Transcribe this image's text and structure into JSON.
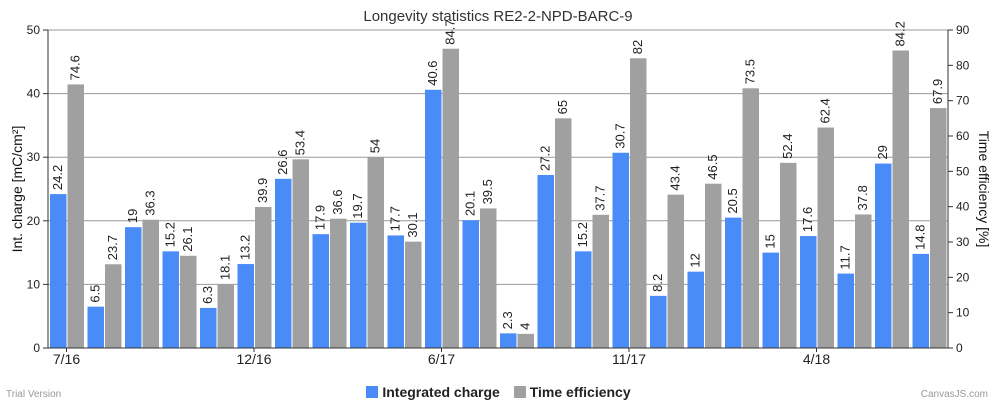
{
  "chart_data": {
    "type": "bar",
    "title": "Longevity statistics RE2-2-NPD-BARC-9",
    "y_left_label": "Int. charge [mC/cm²]",
    "y_right_label": "Time efficiency [%]",
    "y_left_range": [
      0,
      50
    ],
    "y_left_ticks": [
      "0",
      "10",
      "20",
      "30",
      "40",
      "50"
    ],
    "y_right_range": [
      0,
      90
    ],
    "y_right_ticks": [
      "0",
      "10",
      "20",
      "30",
      "40",
      "50",
      "60",
      "70",
      "80",
      "90"
    ],
    "x_tick_labels": [
      {
        "index": 0,
        "label": "7/16"
      },
      {
        "index": 5,
        "label": "12/16"
      },
      {
        "index": 10,
        "label": "6/17"
      },
      {
        "index": 15,
        "label": "11/17"
      },
      {
        "index": 20,
        "label": "4/18"
      }
    ],
    "grid": true,
    "legend_position": "bottom-center",
    "series": [
      {
        "name": "Integrated charge",
        "axis": "left",
        "color": "#4a8cf7",
        "values": [
          24.2,
          6.5,
          19,
          15.2,
          6.3,
          13.2,
          26.6,
          17.9,
          19.7,
          17.7,
          40.6,
          20.1,
          2.3,
          27.2,
          15.2,
          30.7,
          8.2,
          12,
          20.5,
          15,
          17.6,
          11.7,
          29,
          14.8
        ]
      },
      {
        "name": "Time efficiency",
        "axis": "right",
        "color": "#a0a0a0",
        "values": [
          74.6,
          23.7,
          36.3,
          26.1,
          18.1,
          39.9,
          53.4,
          36.6,
          54,
          30.1,
          84.7,
          39.5,
          4,
          65,
          37.7,
          82,
          43.4,
          46.5,
          73.5,
          52.4,
          62.4,
          37.8,
          84.2,
          67.9
        ]
      }
    ]
  },
  "footer": {
    "trial": "Trial Version",
    "credit": "CanvasJS.com"
  }
}
